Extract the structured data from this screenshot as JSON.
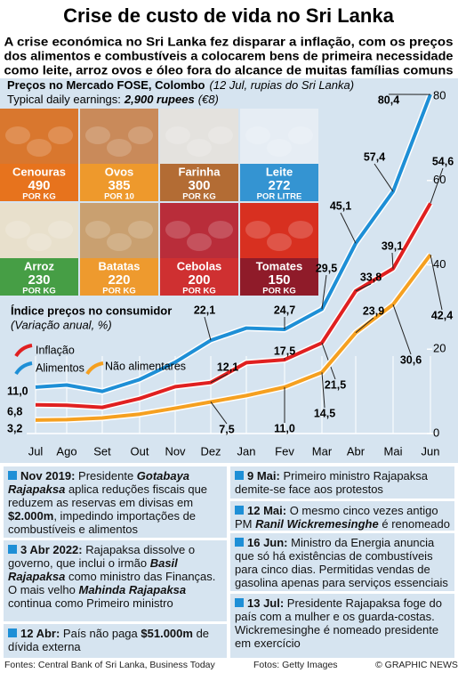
{
  "title": "Crise de custo de vida no Sri Lanka",
  "subtitle": [
    "A crise económica no Sri Lanka fez disparar a inflação, com os preços",
    "dos alimentos e combustíveis a colocarem bens de primeira necessidade",
    "como leite, arroz ovos e óleo fora do alcance de muitas famílias comuns"
  ],
  "market": {
    "title": "Preços no Mercado FOSE, Colombo",
    "note": "(12 Jul, rupias do  Sri Lanka)",
    "earnings_label": "Typical daily earnings:",
    "earnings_value": "2,900 rupees",
    "earnings_note": "(€8)"
  },
  "tiles": [
    {
      "name": "Cenouras",
      "price": 490,
      "unit": "POR KG",
      "color": "#e8731c"
    },
    {
      "name": "Ovos",
      "price": 385,
      "unit": "POR 10",
      "color": "#f09a2a"
    },
    {
      "name": "Farinha",
      "price": 300,
      "unit": "POR KG",
      "color": "#b0652a"
    },
    {
      "name": "Leite",
      "price": 272,
      "unit": "POR LITRE",
      "color": "#2a8fd0"
    },
    {
      "name": "Arroz",
      "price": 230,
      "unit": "POR KG",
      "color": "#3d9a3d"
    },
    {
      "name": "Batatas",
      "price": 220,
      "unit": "POR KG",
      "color": "#f09a2a"
    },
    {
      "name": "Cebolas",
      "price": 200,
      "unit": "POR KG",
      "color": "#d03030"
    },
    {
      "name": "Tomates",
      "price": 150,
      "unit": "POR KG",
      "color": "#8b1a2a"
    }
  ],
  "chart_data": {
    "type": "line",
    "title": "Índice preços no consumidor",
    "subtitle": "(Variação anual, %)",
    "categories": [
      "Jul",
      "Ago",
      "Set",
      "Out",
      "Nov",
      "Dez",
      "Jan",
      "Fev",
      "Mar",
      "Abr",
      "Mai",
      "Jun"
    ],
    "ylim": [
      0,
      80
    ],
    "yticks": [
      0,
      20,
      40,
      60,
      80
    ],
    "series": [
      {
        "name": "Alimentos",
        "color": "#1e8fd6",
        "values": [
          11.0,
          11.5,
          10.0,
          12.8,
          16.9,
          22.1,
          25.0,
          24.7,
          29.5,
          45.1,
          57.4,
          80.4
        ],
        "value_labels": [
          "11,0",
          null,
          null,
          null,
          null,
          "22,1",
          null,
          "24,7",
          "29,5",
          "45,1",
          "57,4",
          "80,4"
        ]
      },
      {
        "name": "Inflação",
        "color": "#e02020",
        "values": [
          6.8,
          6.7,
          6.2,
          8.3,
          11.1,
          12.1,
          16.8,
          17.5,
          21.5,
          33.8,
          39.1,
          54.6
        ],
        "value_labels": [
          "6,8",
          null,
          null,
          null,
          null,
          "12,1",
          null,
          "17,5",
          "21,5",
          "33,8",
          "39,1",
          "54,6"
        ]
      },
      {
        "name": "Não alimentares",
        "color": "#f5a020",
        "values": [
          3.2,
          3.3,
          3.7,
          4.6,
          6.0,
          7.5,
          9.0,
          11.0,
          14.5,
          23.9,
          30.6,
          42.4
        ],
        "value_labels": [
          "3,2",
          null,
          null,
          null,
          null,
          "7,5",
          null,
          "11,0",
          "14,5",
          "23,9",
          "30,6",
          "42,4"
        ]
      }
    ]
  },
  "events": [
    {
      "date": "Nov 2019:",
      "text": [
        " Presidente ",
        "Gotabaya Rajapaksa",
        " aplica reduções fiscais que reduzem as reservas em divisas em ",
        "$2.000m",
        ", impedindo importações de combustíveis e alimentos"
      ]
    },
    {
      "date": "3 Abr 2022:",
      "text": [
        " Rajapaksa dissolve o governo, que inclui o irmão ",
        "Basil Rajapaksa",
        " como ministro das Finanças. O mais velho ",
        "Mahinda Rajapaksa",
        " continua como Primeiro ministro"
      ]
    },
    {
      "date": "12 Abr:",
      "text": [
        " País não paga ",
        "$51.000m",
        " de dívida externa"
      ]
    },
    {
      "date": "9 Mai:",
      "text": [
        " Primeiro ministro Rajapaksa demite-se face aos protestos"
      ]
    },
    {
      "date": "12 Mai:",
      "text": [
        " O mesmo cinco vezes antigo PM ",
        "Ranil Wickremesinghe",
        " é renomeado"
      ]
    },
    {
      "date": "16 Jun:",
      "text": [
        " Ministro da Energia anuncia que só há existências de combustíveis para cinco dias. Permitidas vendas de gasolina apenas para serviços essenciais"
      ]
    },
    {
      "date": "13 Jul:",
      "text": [
        " Presidente Rajapaksa foge do país com a mulher e os guarda-costas. Wickremesinghe é nomeado presidente em exercício"
      ]
    }
  ],
  "footer": {
    "sources": "Fontes: Central Bank of Sri Lanka, Business Today",
    "photos": "Fotos: Getty Images",
    "credit": "© GRAPHIC NEWS"
  }
}
